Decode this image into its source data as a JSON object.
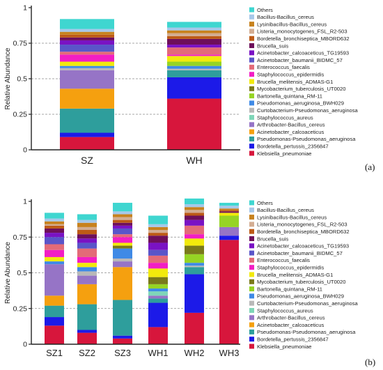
{
  "panel_labels": {
    "a": "(a)",
    "b": "(b)"
  },
  "chart_data": [
    {
      "type": "bar",
      "stacked": true,
      "ylabel": "Relative Abundance",
      "ylim": [
        0,
        1
      ],
      "yticks": [
        "0",
        "0.25",
        "0.5",
        "0.75",
        "1"
      ],
      "grid": "dashed horizontal",
      "legend_position": "right",
      "categories": [
        "SZ",
        "WH"
      ],
      "series": [
        {
          "name": "Klebsiella_pneumoniae",
          "color": "#d7163c",
          "values": [
            0.09,
            0.36
          ]
        },
        {
          "name": "Bordetella_pertussis_2356847",
          "color": "#1c1ae8",
          "values": [
            0.03,
            0.15
          ]
        },
        {
          "name": "Pseudomonas-Pseudomonas_aeruginosa",
          "color": "#2e9e9c",
          "values": [
            0.17,
            0.05
          ]
        },
        {
          "name": "Acinetobacter_calcoaceticus",
          "color": "#f5a00f",
          "values": [
            0.14,
            0.0
          ]
        },
        {
          "name": "Arthrobacter-Bacillus_cereus",
          "color": "#9674c6",
          "values": [
            0.13,
            0.0
          ]
        },
        {
          "name": "Staphylococcus_aureus",
          "color": "#7fd6b8",
          "values": [
            0.0,
            0.0
          ]
        },
        {
          "name": "Curtobacterium-Pseudomonas_aeruginosa",
          "color": "#b8b8b8",
          "values": [
            0.015,
            0.01
          ]
        },
        {
          "name": "Pseudomonas_aeruginosa_BWH029",
          "color": "#3f8ae6",
          "values": [
            0.015,
            0.02
          ]
        },
        {
          "name": "Bartonella_quintana_RM-11",
          "color": "#96d424",
          "values": [
            0.0,
            0.03
          ]
        },
        {
          "name": "Mycobacterium_tuberculosis_UT0020",
          "color": "#7a7a1a",
          "values": [
            0.0,
            0.0
          ]
        },
        {
          "name": "Brucella_melitensis_ADMAS-G1",
          "color": "#f2ea0c",
          "values": [
            0.03,
            0.04
          ]
        },
        {
          "name": "Staphylococcus_epidermidis",
          "color": "#f21ec4",
          "values": [
            0.05,
            0.01
          ]
        },
        {
          "name": "Enterococcus_faecalis",
          "color": "#e36b78",
          "values": [
            0.02,
            0.05
          ]
        },
        {
          "name": "Acinetobacter_baumanii_BIDMC_57",
          "color": "#5a55c9",
          "values": [
            0.05,
            0.0
          ]
        },
        {
          "name": "Acinetobacter_calcoaceticus_TG19593",
          "color": "#7a12c4",
          "values": [
            0.03,
            0.02
          ]
        },
        {
          "name": "Brucella_suis",
          "color": "#6e0f5a",
          "values": [
            0.02,
            0.04
          ]
        },
        {
          "name": "Bordetella_bronchiseptica_MBORD632",
          "color": "#bd5a16",
          "values": [
            0.02,
            0.02
          ]
        },
        {
          "name": "Listeria_monocytogenes_FSL_R2-503",
          "color": "#d3ad92",
          "values": [
            0.0,
            0.02
          ]
        },
        {
          "name": "Lysinibacillus-Bacillus_cereus",
          "color": "#c7821e",
          "values": [
            0.02,
            0.02
          ]
        },
        {
          "name": "Bacillus-Bacillus_cereus",
          "color": "#a6c8ea",
          "values": [
            0.02,
            0.02
          ]
        },
        {
          "name": "Others",
          "color": "#3fd6d0",
          "values": [
            0.07,
            0.04
          ]
        }
      ]
    },
    {
      "type": "bar",
      "stacked": true,
      "ylabel": "Relative Abundance",
      "ylim": [
        0,
        1
      ],
      "yticks": [
        "0",
        "0.25",
        "0.5",
        "0.75",
        "1"
      ],
      "grid": "dashed horizontal",
      "legend_position": "right",
      "categories": [
        "SZ1",
        "SZ2",
        "SZ3",
        "WH1",
        "WH2",
        "WH3"
      ],
      "series": [
        {
          "name": "Klebsiella_pneumoniae",
          "color": "#d7163c",
          "values": [
            0.13,
            0.08,
            0.04,
            0.12,
            0.22,
            0.73
          ]
        },
        {
          "name": "Bordetella_pertussis_2356847",
          "color": "#1c1ae8",
          "values": [
            0.06,
            0.02,
            0.02,
            0.17,
            0.27,
            0.03
          ]
        },
        {
          "name": "Pseudomonas-Pseudomonas_aeruginosa",
          "color": "#2e9e9c",
          "values": [
            0.08,
            0.18,
            0.25,
            0.03,
            0.05,
            0.0
          ]
        },
        {
          "name": "Acinetobacter_calcoaceticus",
          "color": "#f5a00f",
          "values": [
            0.07,
            0.14,
            0.23,
            0.0,
            0.0,
            0.0
          ]
        },
        {
          "name": "Arthrobacter-Bacillus_cereus",
          "color": "#9674c6",
          "values": [
            0.22,
            0.06,
            0.04,
            0.02,
            0.0,
            0.06
          ]
        },
        {
          "name": "Staphylococcus_aureus",
          "color": "#7fd6b8",
          "values": [
            0.0,
            0.0,
            0.0,
            0.03,
            0.0,
            0.0
          ]
        },
        {
          "name": "Curtobacterium-Pseudomonas_aeruginosa",
          "color": "#b8b8b8",
          "values": [
            0.0,
            0.03,
            0.02,
            0.0,
            0.01,
            0.0
          ]
        },
        {
          "name": "Pseudomonas_aeruginosa_BWH029",
          "color": "#3f8ae6",
          "values": [
            0.02,
            0.03,
            0.07,
            0.02,
            0.02,
            0.0
          ]
        },
        {
          "name": "Bartonella_quintana_RM-11",
          "color": "#96d424",
          "values": [
            0.0,
            0.0,
            0.0,
            0.03,
            0.06,
            0.08
          ]
        },
        {
          "name": "Mycobacterium_tuberculosis_UT0020",
          "color": "#7a7a1a",
          "values": [
            0.0,
            0.0,
            0.02,
            0.05,
            0.06,
            0.0
          ]
        },
        {
          "name": "Brucella_melitensis_ADMAS-G1",
          "color": "#f2ea0c",
          "values": [
            0.03,
            0.03,
            0.02,
            0.06,
            0.05,
            0.02
          ]
        },
        {
          "name": "Staphylococcus_epidermidis",
          "color": "#f21ec4",
          "values": [
            0.05,
            0.04,
            0.04,
            0.04,
            0.03,
            0.0
          ]
        },
        {
          "name": "Enterococcus_faecalis",
          "color": "#e36b78",
          "values": [
            0.04,
            0.06,
            0.02,
            0.05,
            0.06,
            0.0
          ]
        },
        {
          "name": "Acinetobacter_baumanii_BIDMC_57",
          "color": "#5a55c9",
          "values": [
            0.05,
            0.04,
            0.04,
            0.04,
            0.0,
            0.0
          ]
        },
        {
          "name": "Acinetobacter_calcoaceticus_TG19593",
          "color": "#7a12c4",
          "values": [
            0.03,
            0.03,
            0.02,
            0.05,
            0.04,
            0.0
          ]
        },
        {
          "name": "Brucella_suis",
          "color": "#6e0f5a",
          "values": [
            0.03,
            0.03,
            0.02,
            0.05,
            0.03,
            0.01
          ]
        },
        {
          "name": "Bordetella_bronchiseptica_MBORD632",
          "color": "#bd5a16",
          "values": [
            0.02,
            0.03,
            0.02,
            0.02,
            0.02,
            0.01
          ]
        },
        {
          "name": "Listeria_monocytogenes_FSL_R2-503",
          "color": "#d3ad92",
          "values": [
            0.01,
            0.02,
            0.02,
            0.02,
            0.02,
            0.0
          ]
        },
        {
          "name": "Lysinibacillus-Bacillus_cereus",
          "color": "#c7821e",
          "values": [
            0.02,
            0.03,
            0.02,
            0.02,
            0.02,
            0.01
          ]
        },
        {
          "name": "Bacillus-Bacillus_cereus",
          "color": "#a6c8ea",
          "values": [
            0.02,
            0.02,
            0.02,
            0.02,
            0.02,
            0.02
          ]
        },
        {
          "name": "Others",
          "color": "#3fd6d0",
          "values": [
            0.04,
            0.04,
            0.06,
            0.06,
            0.04,
            0.02
          ]
        }
      ]
    }
  ]
}
